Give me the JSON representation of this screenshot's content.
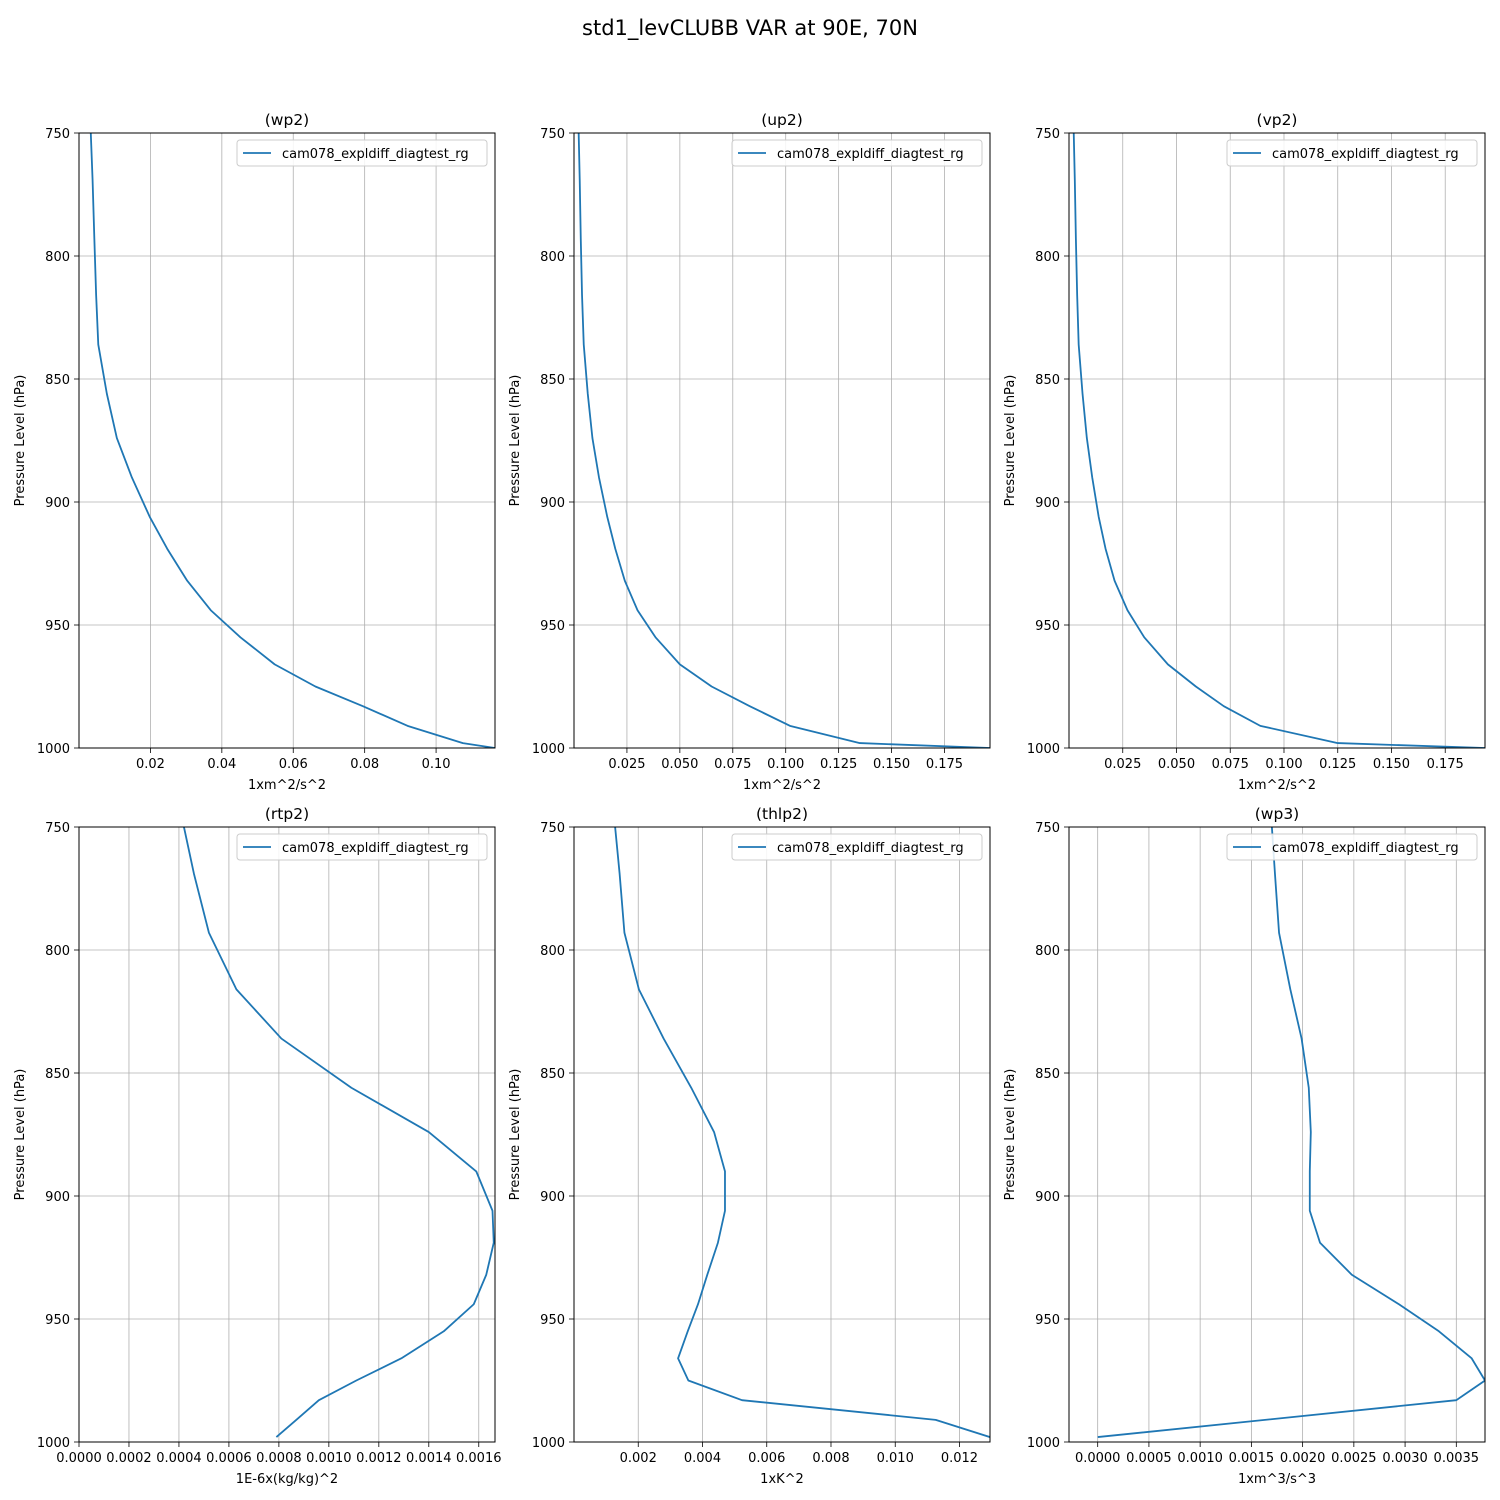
{
  "suptitle": "std1_levCLUBB VAR at 90E, 70N",
  "chart_data": [
    {
      "type": "line",
      "title": "(wp2)",
      "xlabel": "1xm^2/s^2",
      "ylabel": "Pressure Level (hPa)",
      "xlim": [
        0.0,
        0.1165
      ],
      "ylim": [
        1000,
        750
      ],
      "xticks": [
        0.02,
        0.04,
        0.06,
        0.08,
        0.1
      ],
      "xtick_labels": [
        "0.02",
        "0.04",
        "0.06",
        "0.08",
        "0.10"
      ],
      "yticks": [
        750,
        800,
        850,
        900,
        950,
        1000
      ],
      "grid": true,
      "legend_position": "top-right",
      "series": [
        {
          "name": "cam078_expldiff_diagtest_rg",
          "color": "#1f77b4",
          "x": [
            0.0033,
            0.0038,
            0.0043,
            0.0048,
            0.0054,
            0.0078,
            0.0106,
            0.0148,
            0.0198,
            0.0247,
            0.0303,
            0.0369,
            0.0452,
            0.0548,
            0.0662,
            0.0795,
            0.092,
            0.1075,
            0.1165
          ],
          "y": [
            750,
            769,
            793,
            816,
            836,
            856,
            874,
            890,
            906,
            919,
            932,
            944,
            955,
            966,
            975,
            983,
            991,
            998,
            1000
          ]
        }
      ]
    },
    {
      "type": "line",
      "title": "(up2)",
      "xlabel": "1xm^2/s^2",
      "ylabel": "Pressure Level (hPa)",
      "xlim": [
        0.0,
        0.1965
      ],
      "ylim": [
        1000,
        750
      ],
      "xticks": [
        0.025,
        0.05,
        0.075,
        0.1,
        0.125,
        0.15,
        0.175
      ],
      "xtick_labels": [
        "0.025",
        "0.050",
        "0.075",
        "0.100",
        "0.125",
        "0.150",
        "0.175"
      ],
      "yticks": [
        750,
        800,
        850,
        900,
        950,
        1000
      ],
      "grid": true,
      "legend_position": "top-right",
      "series": [
        {
          "name": "cam078_expldiff_diagtest_rg",
          "color": "#1f77b4",
          "x": [
            0.0022,
            0.0027,
            0.0032,
            0.0038,
            0.0046,
            0.0065,
            0.0087,
            0.0118,
            0.0157,
            0.0195,
            0.024,
            0.03,
            0.0385,
            0.05,
            0.065,
            0.083,
            0.102,
            0.135,
            0.1965
          ],
          "y": [
            750,
            769,
            793,
            816,
            836,
            856,
            874,
            890,
            906,
            919,
            932,
            944,
            955,
            966,
            975,
            983,
            991,
            998,
            1000
          ]
        }
      ]
    },
    {
      "type": "line",
      "title": "(vp2)",
      "xlabel": "1xm^2/s^2",
      "ylabel": "Pressure Level (hPa)",
      "xlim": [
        0.0,
        0.1935
      ],
      "ylim": [
        1000,
        750
      ],
      "xticks": [
        0.025,
        0.05,
        0.075,
        0.1,
        0.125,
        0.15,
        0.175
      ],
      "xtick_labels": [
        "0.025",
        "0.050",
        "0.075",
        "0.100",
        "0.125",
        "0.150",
        "0.175"
      ],
      "yticks": [
        750,
        800,
        850,
        900,
        950,
        1000
      ],
      "grid": true,
      "legend_position": "top-right",
      "series": [
        {
          "name": "cam078_expldiff_diagtest_rg",
          "color": "#1f77b4",
          "x": [
            0.0022,
            0.0027,
            0.0032,
            0.0038,
            0.0045,
            0.0063,
            0.0083,
            0.0108,
            0.0138,
            0.017,
            0.0212,
            0.0272,
            0.035,
            0.046,
            0.059,
            0.072,
            0.089,
            0.125,
            0.1935
          ],
          "y": [
            750,
            769,
            793,
            816,
            836,
            856,
            874,
            890,
            906,
            919,
            932,
            944,
            955,
            966,
            975,
            983,
            991,
            998,
            1000
          ]
        }
      ]
    },
    {
      "type": "line",
      "title": "(rtp2)",
      "xlabel": "1E-6x(kg/kg)^2",
      "ylabel": "Pressure Level (hPa)",
      "xlim": [
        0.0,
        0.001665
      ],
      "ylim": [
        1000,
        750
      ],
      "xticks": [
        0.0,
        0.0002,
        0.0004,
        0.0006,
        0.0008,
        0.001,
        0.0012,
        0.0014,
        0.0016
      ],
      "xtick_labels": [
        "0.0000",
        "0.0002",
        "0.0004",
        "0.0006",
        "0.0008",
        "0.0010",
        "0.0012",
        "0.0014",
        "0.0016"
      ],
      "yticks": [
        750,
        800,
        850,
        900,
        950,
        1000
      ],
      "grid": true,
      "legend_position": "top-right",
      "series": [
        {
          "name": "cam078_expldiff_diagtest_rg",
          "color": "#1f77b4",
          "x": [
            0.00042,
            0.00046,
            0.00052,
            0.00063,
            0.00081,
            0.00109,
            0.0014,
            0.00159,
            0.001655,
            0.00166,
            0.00163,
            0.00158,
            0.00146,
            0.00129,
            0.00111,
            0.00096,
            0.00087,
            0.00079
          ],
          "y": [
            750,
            769,
            793,
            816,
            836,
            856,
            874,
            890,
            906,
            919,
            932,
            944,
            955,
            966,
            975,
            983,
            991,
            998
          ]
        }
      ]
    },
    {
      "type": "line",
      "title": "(thlp2)",
      "xlabel": "1xK^2",
      "ylabel": "Pressure Level (hPa)",
      "xlim": [
        0.0,
        0.01295
      ],
      "ylim": [
        1000,
        750
      ],
      "xticks": [
        0.002,
        0.004,
        0.006,
        0.008,
        0.01,
        0.012
      ],
      "xtick_labels": [
        "0.002",
        "0.004",
        "0.006",
        "0.008",
        "0.010",
        "0.012"
      ],
      "yticks": [
        750,
        800,
        850,
        900,
        950,
        1000
      ],
      "grid": true,
      "legend_position": "top-right",
      "series": [
        {
          "name": "cam078_expldiff_diagtest_rg",
          "color": "#1f77b4",
          "x": [
            0.00128,
            0.00142,
            0.00157,
            0.00202,
            0.00279,
            0.00365,
            0.00436,
            0.0047,
            0.0047,
            0.00448,
            0.00415,
            0.00386,
            0.00354,
            0.00324,
            0.00356,
            0.00523,
            0.01126,
            0.01295
          ],
          "y": [
            750,
            769,
            793,
            816,
            836,
            856,
            874,
            890,
            906,
            919,
            932,
            944,
            955,
            966,
            975,
            983,
            991,
            998
          ]
        }
      ]
    },
    {
      "type": "line",
      "title": "(wp3)",
      "xlabel": "1xm^3/s^3",
      "ylabel": "Pressure Level (hPa)",
      "xlim": [
        -0.00028,
        0.00378
      ],
      "ylim": [
        1000,
        750
      ],
      "xticks": [
        0.0,
        0.0005,
        0.001,
        0.0015,
        0.002,
        0.0025,
        0.003,
        0.0035
      ],
      "xtick_labels": [
        "0.0000",
        "0.0005",
        "0.0010",
        "0.0015",
        "0.0020",
        "0.0025",
        "0.0030",
        "0.0035"
      ],
      "yticks": [
        750,
        800,
        850,
        900,
        950,
        1000
      ],
      "grid": true,
      "legend_position": "top-right",
      "series": [
        {
          "name": "cam078_expldiff_diagtest_rg",
          "color": "#1f77b4",
          "x": [
            0.0017,
            0.00173,
            0.00177,
            0.00188,
            0.00199,
            0.00206,
            0.00208,
            0.00207,
            0.00207,
            0.00217,
            0.00248,
            0.00294,
            0.00333,
            0.00365,
            0.00378,
            0.0035,
            0.0,
            0.0
          ],
          "y": [
            750,
            769,
            793,
            816,
            836,
            856,
            874,
            890,
            906,
            919,
            932,
            944,
            955,
            966,
            975,
            983,
            998,
            998
          ]
        }
      ]
    }
  ]
}
